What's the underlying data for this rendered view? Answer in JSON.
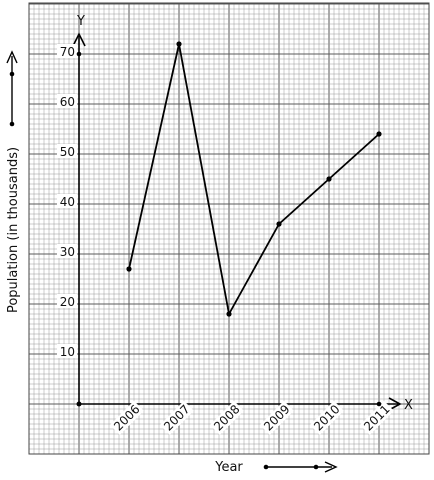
{
  "chart_data": {
    "type": "line",
    "title": "",
    "xlabel": "Year",
    "ylabel": "Population (in thousands)",
    "x_axis_letter": "X",
    "y_axis_letter": "Y",
    "categories": [
      "2006",
      "2007",
      "2008",
      "2009",
      "2010",
      "2011"
    ],
    "values": [
      27,
      72,
      18,
      36,
      45,
      54
    ],
    "ylim": [
      0,
      70
    ],
    "yticks": [
      "10",
      "20",
      "30",
      "40",
      "50",
      "60",
      "70"
    ],
    "grid": true,
    "line_color": "#000000",
    "grid_color": "#9a9a9a"
  }
}
